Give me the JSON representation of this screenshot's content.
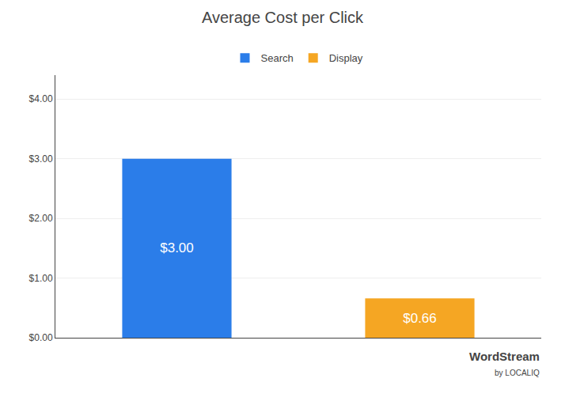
{
  "chart_data": {
    "type": "bar",
    "title": "Average Cost per Click",
    "categories": [
      "Search",
      "Display"
    ],
    "values": [
      3.0,
      0.66
    ],
    "value_labels": [
      "$3.00",
      "$0.66"
    ],
    "colors": [
      "#2b7de9",
      "#f5a623"
    ],
    "data_labels": true,
    "ylim": [
      0,
      4.4
    ],
    "yticks": [
      {
        "value": 0.0,
        "label": "$0.00"
      },
      {
        "value": 1.0,
        "label": "$1.00"
      },
      {
        "value": 2.0,
        "label": "$2.00"
      },
      {
        "value": 3.0,
        "label": "$3.00"
      },
      {
        "value": 4.0,
        "label": "$4.00"
      }
    ],
    "grid": true,
    "legend": "top",
    "tick_labels": "y",
    "annotations": [
      "WordStream",
      "by LOCALIQ"
    ]
  }
}
